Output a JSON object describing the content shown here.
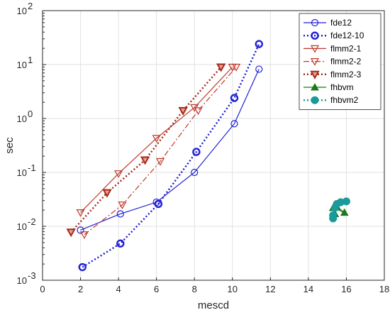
{
  "chart_data": {
    "type": "line",
    "title": "",
    "xlabel": "mescd",
    "ylabel": "sec",
    "xlim": [
      0,
      18
    ],
    "ylim": [
      0.001,
      100
    ],
    "yscale": "log",
    "grid": true,
    "legend_position": "top-right",
    "x_ticks": [
      "0",
      "2",
      "4",
      "6",
      "8",
      "10",
      "12",
      "14",
      "16",
      "18"
    ],
    "y_ticks": [
      {
        "base": "10",
        "exp": "-3"
      },
      {
        "base": "10",
        "exp": "-2"
      },
      {
        "base": "10",
        "exp": "-1"
      },
      {
        "base": "10",
        "exp": "0"
      },
      {
        "base": "10",
        "exp": "1"
      },
      {
        "base": "10",
        "exp": "2"
      }
    ],
    "series": [
      {
        "name": "fde12",
        "color": "#1f1fd6",
        "dash": "solid",
        "marker": "circle-open",
        "x": [
          2.0,
          4.1,
          6.0,
          8.0,
          10.1,
          11.4
        ],
        "y": [
          0.0085,
          0.017,
          0.028,
          0.1,
          0.8,
          8.2
        ]
      },
      {
        "name": "fde12-10",
        "color": "#1f1fd6",
        "dash": "dotted",
        "marker": "circle-open-bold",
        "x": [
          2.1,
          4.1,
          6.1,
          8.1,
          10.1,
          11.4
        ],
        "y": [
          0.00175,
          0.0048,
          0.026,
          0.24,
          2.4,
          24
        ]
      },
      {
        "name": "flmm2-1",
        "color": "#c0392b",
        "dash": "solid",
        "marker": "triangle-down-open",
        "x": [
          2.0,
          4.0,
          6.0,
          8.0,
          10.0
        ],
        "y": [
          0.018,
          0.095,
          0.43,
          1.6,
          9.0
        ]
      },
      {
        "name": "flmm2-2",
        "color": "#c0392b",
        "dash": "dashdot",
        "marker": "triangle-down-open",
        "x": [
          2.2,
          4.2,
          6.2,
          8.2,
          10.2
        ],
        "y": [
          0.007,
          0.025,
          0.16,
          1.4,
          9.0
        ]
      },
      {
        "name": "flmm2-3",
        "color": "#a52a1a",
        "dash": "dotted",
        "marker": "triangle-down-filled",
        "x": [
          1.5,
          3.4,
          5.4,
          7.4,
          9.4
        ],
        "y": [
          0.0078,
          0.042,
          0.17,
          1.4,
          9.0
        ]
      },
      {
        "name": "fhbvm",
        "color": "#1a7a1a",
        "dash": "solid",
        "marker": "triangle-up-filled",
        "x": [
          15.3,
          15.9,
          15.5,
          15.4
        ],
        "y": [
          0.022,
          0.018,
          0.023,
          0.017
        ]
      },
      {
        "name": "fhbvm2",
        "color": "#1a9a9a",
        "dash": "dotted",
        "marker": "circle-filled",
        "x": [
          15.3,
          15.4,
          15.7,
          16.0,
          15.5,
          15.3
        ],
        "y": [
          0.014,
          0.022,
          0.028,
          0.029,
          0.026,
          0.016
        ]
      }
    ]
  }
}
